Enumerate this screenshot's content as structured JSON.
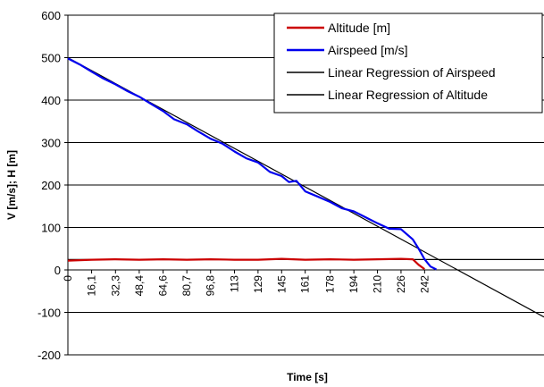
{
  "chart_data": {
    "type": "line",
    "xlabel": "Time [s]",
    "ylabel": "V [m/s]; H [m]",
    "ylim": [
      -200,
      600
    ],
    "yticks": [
      600,
      500,
      400,
      300,
      200,
      100,
      0,
      -100,
      -200
    ],
    "xlim": [
      0,
      323
    ],
    "xtick_values": [
      0,
      16.1,
      32.3,
      48.4,
      64.6,
      80.7,
      96.8,
      113,
      129,
      145,
      161,
      178,
      194,
      210,
      226,
      242
    ],
    "xtick_labels": [
      "0",
      "16,1",
      "32,3",
      "48,4",
      "64,6",
      "80,7",
      "96,8",
      "113",
      "129",
      "145",
      "161",
      "178",
      "194",
      "210",
      "226",
      "242"
    ],
    "grid": "horizontal",
    "legend_position": "top-right",
    "series": [
      {
        "name": "Altitude [m]",
        "color": "#cc0000",
        "x": [
          0,
          16.1,
          32.3,
          48.4,
          64.6,
          80.7,
          96.8,
          113,
          129,
          145,
          161,
          178,
          194,
          210,
          226,
          234,
          238,
          242
        ],
        "y": [
          22,
          24,
          25,
          24,
          25,
          24,
          25,
          24,
          24,
          26,
          24,
          25,
          24,
          25,
          26,
          25,
          12,
          2
        ]
      },
      {
        "name": "Airspeed [m/s]",
        "color": "#0000ee",
        "x": [
          0,
          8,
          16.1,
          24,
          32.3,
          40,
          48.4,
          56,
          64.6,
          72,
          80.7,
          88,
          96.8,
          105,
          113,
          121,
          129,
          137,
          145,
          150,
          155,
          161,
          170,
          178,
          186,
          194,
          202,
          210,
          218,
          226,
          234,
          238,
          242,
          246,
          250
        ],
        "y": [
          498,
          484,
          467,
          451,
          437,
          422,
          408,
          392,
          374,
          355,
          343,
          327,
          309,
          297,
          279,
          263,
          253,
          231,
          221,
          207,
          210,
          185,
          172,
          160,
          145,
          138,
          124,
          110,
          97,
          96,
          72,
          50,
          25,
          8,
          1
        ]
      },
      {
        "name": "Linear Regression of Airspeed",
        "color": "#000000",
        "x": [
          0,
          323
        ],
        "y": [
          500,
          -111
        ]
      },
      {
        "name": "Linear Regression of Altitude",
        "color": "#000000",
        "x": [
          0,
          323
        ],
        "y": [
          24.5,
          24.5
        ]
      }
    ]
  }
}
